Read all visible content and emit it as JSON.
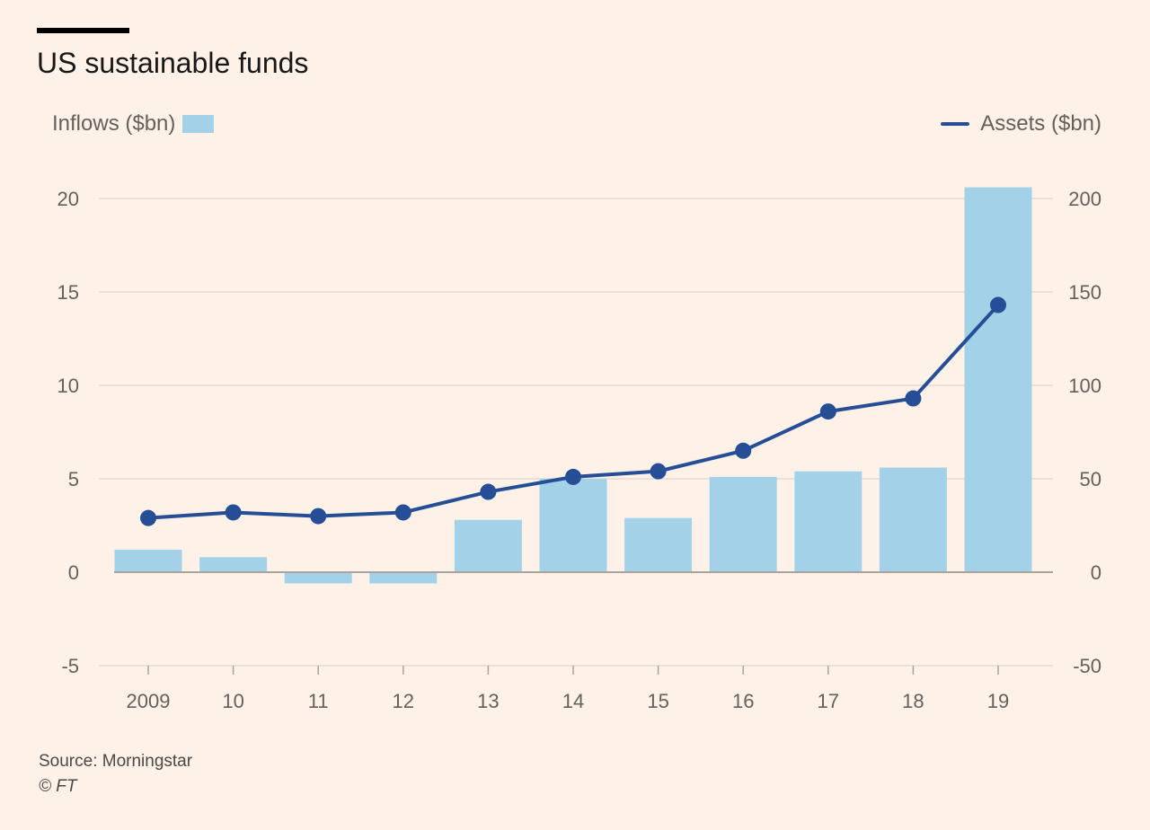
{
  "header": {
    "title": "US sustainable funds"
  },
  "legend": {
    "bars_label": "Inflows ($bn)",
    "line_label": "Assets ($bn)"
  },
  "footer": {
    "source": "Source: Morningstar",
    "copyright": "© FT"
  },
  "colors": {
    "background": "#fdf1e8",
    "bar": "#a3d2e8",
    "line": "#254e96",
    "grid": "#e8dbd2",
    "zero_line": "#a9a29d"
  },
  "chart_data": {
    "type": "bar",
    "title": "US sustainable funds",
    "categories": [
      "2009",
      "10",
      "11",
      "12",
      "13",
      "14",
      "15",
      "16",
      "17",
      "18",
      "19"
    ],
    "series": [
      {
        "name": "Inflows ($bn)",
        "type": "bar",
        "axis": "left",
        "values": [
          1.2,
          0.8,
          -0.6,
          -0.6,
          2.8,
          5.0,
          2.9,
          5.1,
          5.4,
          5.6,
          20.6
        ]
      },
      {
        "name": "Assets ($bn)",
        "type": "line",
        "axis": "right",
        "values": [
          29,
          32,
          30,
          32,
          43,
          51,
          54,
          65,
          86,
          93,
          143
        ]
      }
    ],
    "y_left": {
      "ylim": [
        -5,
        20
      ],
      "ticks": [
        "-5",
        "0",
        "5",
        "10",
        "15",
        "20"
      ]
    },
    "y_right": {
      "ylim": [
        -50,
        200
      ],
      "ticks": [
        "-50",
        "0",
        "50",
        "100",
        "150",
        "200"
      ]
    },
    "grid": true,
    "legend_placement": "top"
  }
}
